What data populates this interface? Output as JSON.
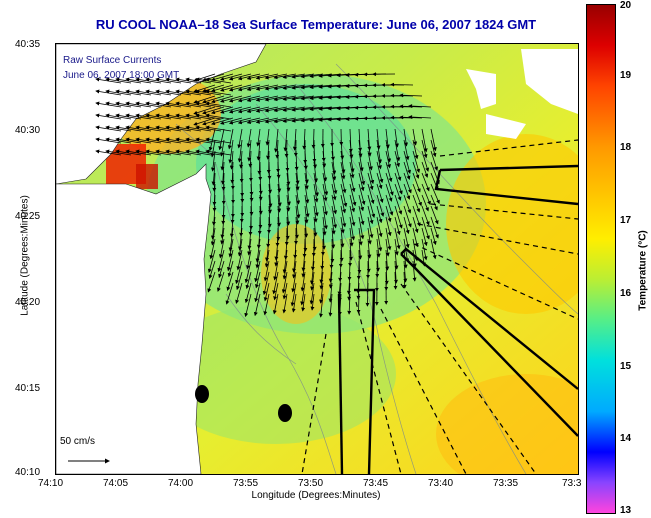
{
  "title": "RU COOL  NOAA–18  Sea Surface Temperature:  June 06, 2007 1824 GMT",
  "legend": {
    "line1": "Raw Surface Currents",
    "line2": "June 06, 2007 18:00 GMT",
    "scale": "50 cm/s"
  },
  "yaxis": {
    "title": "Latitude (Degrees:Minutes)",
    "ticks": [
      "40:35",
      "40:30",
      "40:25",
      "40:20",
      "40:15",
      "40:10"
    ]
  },
  "xaxis": {
    "title": "Longitude (Degrees:Minutes)",
    "ticks": [
      "74:10",
      "74:05",
      "74:00",
      "73:55",
      "73:50",
      "73:45",
      "73:40",
      "73:35",
      "73:3"
    ]
  },
  "colorbar": {
    "title": "Temperature (°C)",
    "ticks": [
      "20",
      "19",
      "18",
      "17",
      "16",
      "15",
      "14",
      "13"
    ]
  },
  "colors": {
    "title": "#0000aa",
    "land": "#ffffff",
    "sea_warm": "#ffcc00",
    "sea_mid": "#ccee44",
    "sea_cool": "#55e0a0"
  }
}
